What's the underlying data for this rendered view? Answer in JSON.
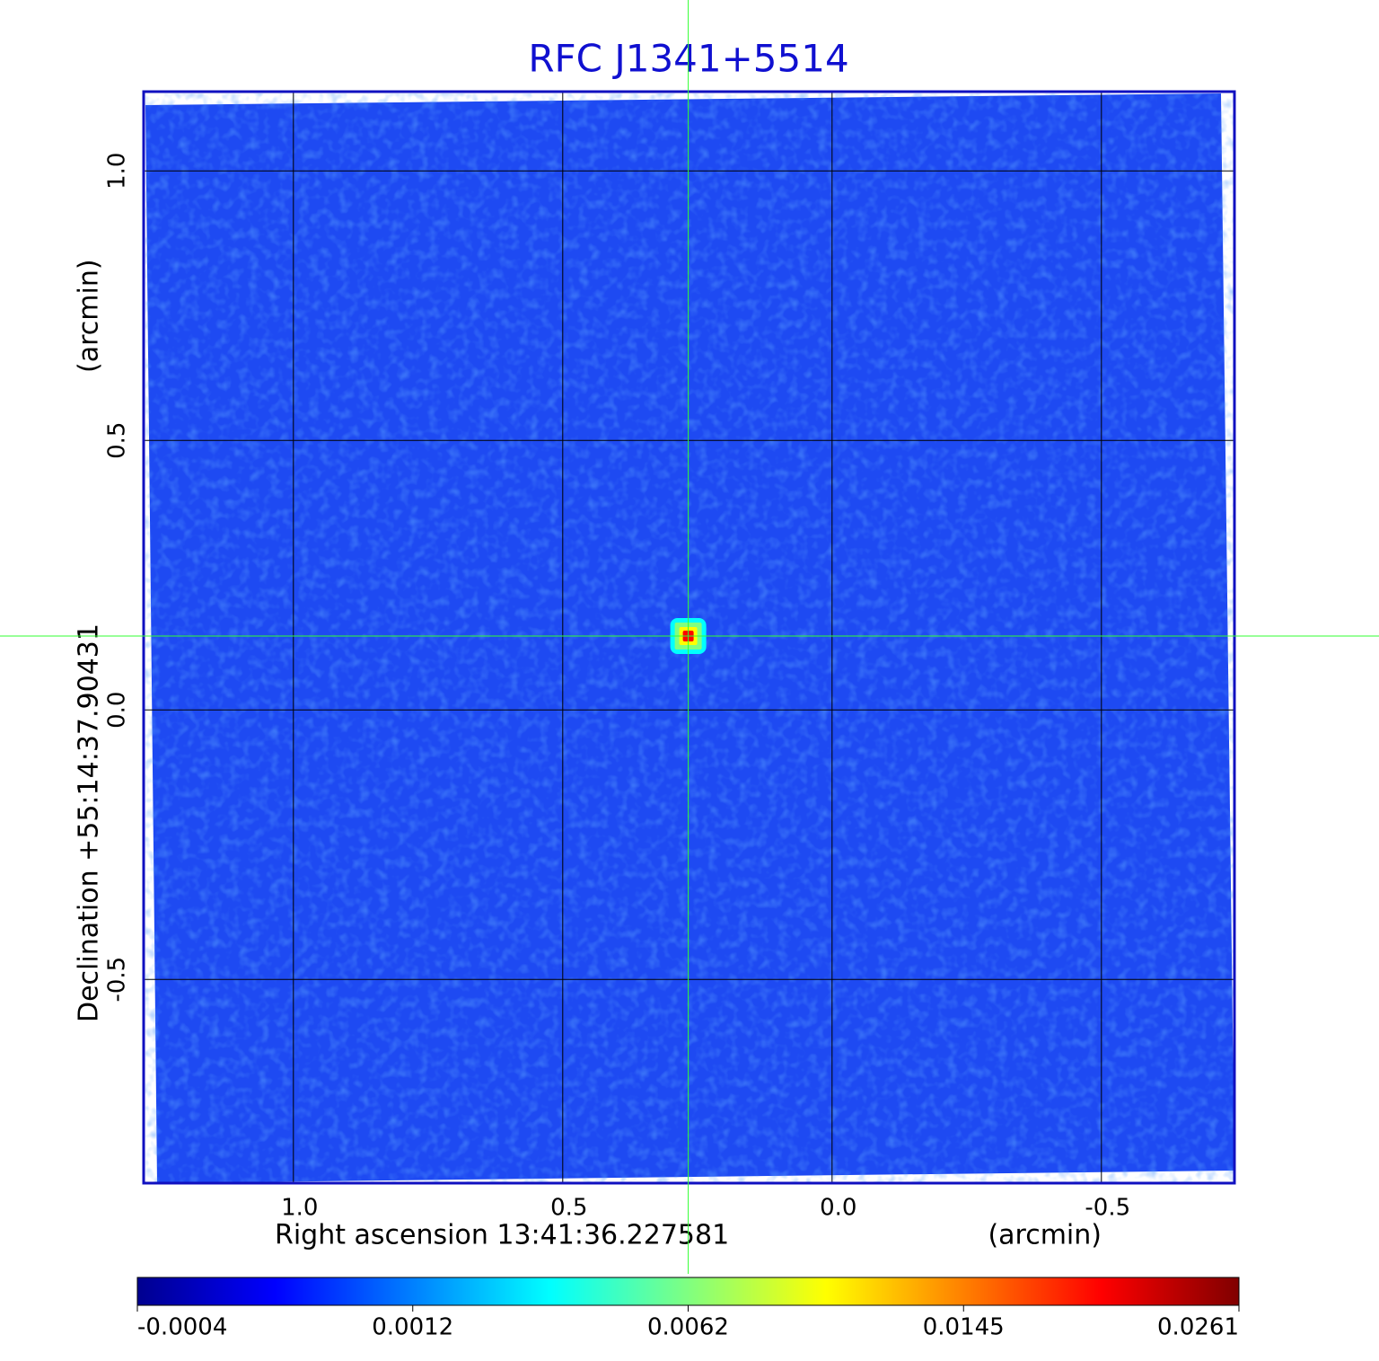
{
  "chart_data": {
    "type": "heatmap",
    "title": "RFC J1341+5514",
    "xlabel": "Right ascension  13:41:36.227581",
    "xunit": "(arcmin)",
    "ylabel": "Declination  +55:14:37.90431",
    "yunit": "(arcmin)",
    "xlim": [
      1.278,
      -0.747
    ],
    "ylim": [
      -0.878,
      1.147
    ],
    "xticks": [
      {
        "value": 1.0,
        "label": "1.0"
      },
      {
        "value": 0.5,
        "label": "0.5"
      },
      {
        "value": 0.0,
        "label": "0.0"
      },
      {
        "value": -0.5,
        "label": "-0.5"
      }
    ],
    "yticks": [
      {
        "value": 1.0,
        "label": "1.0"
      },
      {
        "value": 0.5,
        "label": "0.5"
      },
      {
        "value": 0.0,
        "label": "0.0"
      },
      {
        "value": -0.5,
        "label": "-0.5"
      }
    ],
    "grid": true,
    "source": {
      "x": 0.267,
      "y": 0.137
    },
    "colorbar": {
      "ticks": [
        -0.0004,
        0.0012,
        0.0062,
        0.0145,
        0.0261
      ],
      "colors": [
        "#00008f",
        "#0000ff",
        "#0080ff",
        "#00ffff",
        "#80ff80",
        "#ffff00",
        "#ff8000",
        "#ff0000",
        "#800000"
      ]
    }
  }
}
